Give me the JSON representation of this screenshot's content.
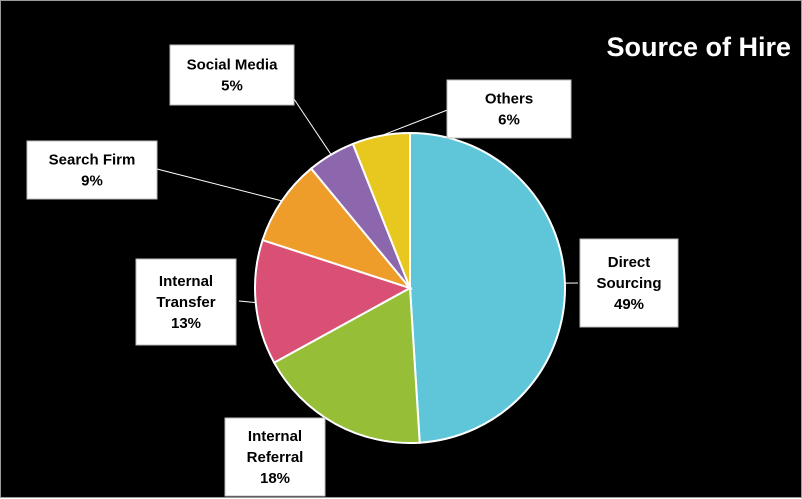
{
  "chart_data": {
    "type": "pie",
    "title": "Source of Hire",
    "slices": [
      {
        "label_lines": [
          "Direct",
          "Sourcing"
        ],
        "value": 49,
        "value_label": "49%",
        "color": "#5fc6da"
      },
      {
        "label_lines": [
          "Internal",
          "Referral"
        ],
        "value": 18,
        "value_label": "18%",
        "color": "#96be37"
      },
      {
        "label_lines": [
          "Internal",
          "Transfer"
        ],
        "value": 13,
        "value_label": "13%",
        "color": "#da4f74"
      },
      {
        "label_lines": [
          "Search Firm"
        ],
        "value": 9,
        "value_label": "9%",
        "color": "#ee9c2a"
      },
      {
        "label_lines": [
          "Social Media"
        ],
        "value": 5,
        "value_label": "5%",
        "color": "#8d67ae"
      },
      {
        "label_lines": [
          "Others"
        ],
        "value": 6,
        "value_label": "6%",
        "color": "#e8c71f"
      }
    ],
    "start": "12 o'clock",
    "direction": "clockwise",
    "legend": "none",
    "data_labels": "callouts with leader lines"
  },
  "colors": {
    "background": "#000000",
    "title": "#ffffff",
    "label_box": "#ffffff",
    "slice_border": "#ffffff"
  }
}
